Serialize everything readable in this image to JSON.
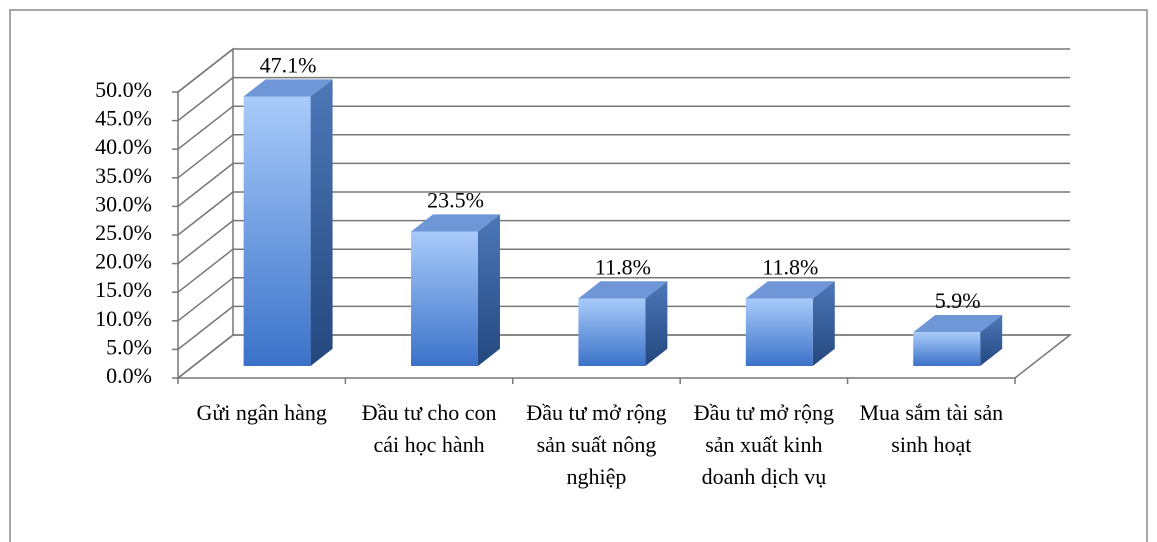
{
  "chart_data": {
    "type": "bar3d",
    "categories": [
      "Gửi ngân hàng",
      "Đầu tư cho con cái học hành",
      "Đầu tư mở rộng sản suất nông nghiệp",
      "Đầu tư mở rộng sản xuất kinh doanh dịch vụ",
      "Mua sắm tài sản sinh hoạt"
    ],
    "values": [
      47.1,
      23.5,
      11.8,
      11.8,
      5.9
    ],
    "value_labels": [
      "47.1%",
      "23.5%",
      "11.8%",
      "11.8%",
      "5.9%"
    ],
    "color": "#5b8fe0",
    "ylim": [
      0,
      50
    ],
    "yticks": [
      {
        "value": 0,
        "label": "0.0%"
      },
      {
        "value": 5,
        "label": "5.0%"
      },
      {
        "value": 10,
        "label": "10.0%"
      },
      {
        "value": 15,
        "label": "15.0%"
      },
      {
        "value": 20,
        "label": "20.0%"
      },
      {
        "value": 25,
        "label": "25.0%"
      },
      {
        "value": 30,
        "label": "30.0%"
      },
      {
        "value": 35,
        "label": "35.0%"
      },
      {
        "value": 40,
        "label": "40.0%"
      },
      {
        "value": 45,
        "label": "45.0%"
      },
      {
        "value": 50,
        "label": "50.0%"
      }
    ],
    "grid": true
  }
}
